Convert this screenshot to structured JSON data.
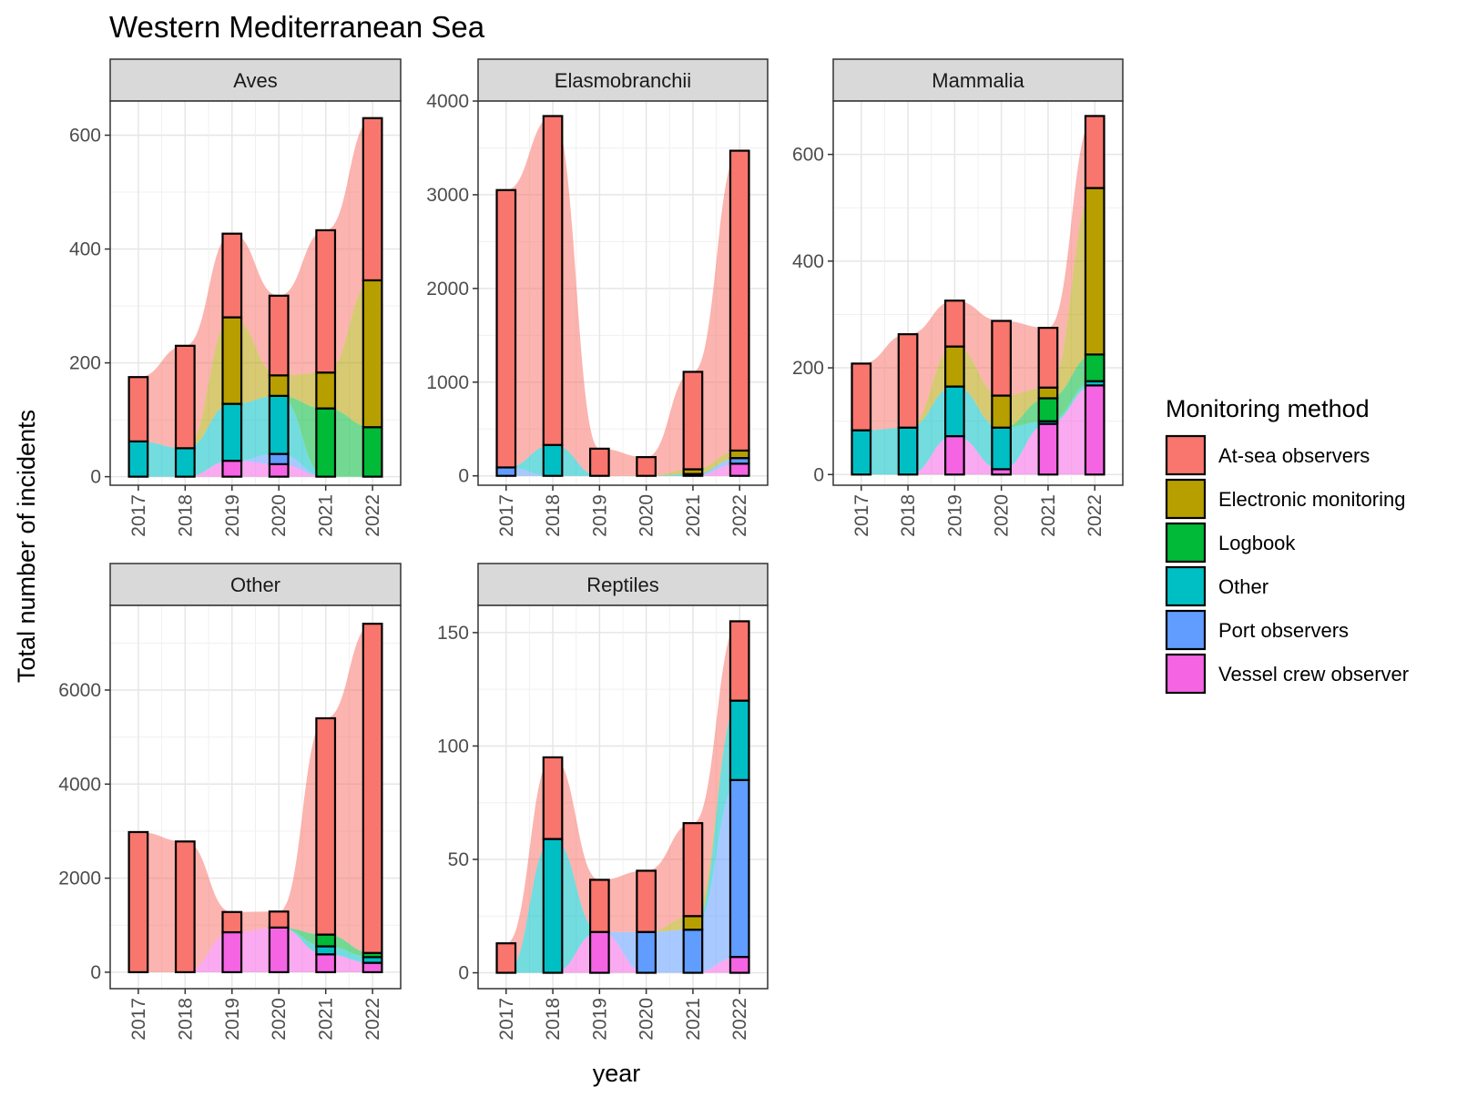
{
  "chart_data": {
    "type": "bar",
    "title": "Western Mediterranean Sea",
    "xlabel": "year",
    "ylabel": "Total number of incidents",
    "legend": {
      "title": "Monitoring method",
      "placement": "right",
      "entries": [
        "At-sea observers",
        "Electronic monitoring",
        "Logbook",
        "Other",
        "Port observers",
        "Vessel crew observer"
      ]
    },
    "colors": {
      "At-sea observers": "#F8766D",
      "Electronic monitoring": "#B79F00",
      "Logbook": "#00BA38",
      "Other": "#00BFC4",
      "Port observers": "#619CFF",
      "Vessel crew observer": "#F564E3"
    },
    "stack_order": [
      "Vessel crew observer",
      "Port observers",
      "Other",
      "Logbook",
      "Electronic monitoring",
      "At-sea observers"
    ],
    "categories": [
      "2017",
      "2018",
      "2019",
      "2020",
      "2021",
      "2022"
    ],
    "grid": true,
    "panels": [
      {
        "name": "Aves",
        "ylim": [
          -15,
          660
        ],
        "yticks": [
          0,
          200,
          400,
          600
        ],
        "series": [
          {
            "name": "Vessel crew observer",
            "values": [
              0,
              0,
              28,
              22,
              0,
              0
            ]
          },
          {
            "name": "Port observers",
            "values": [
              0,
              0,
              0,
              18,
              0,
              0
            ]
          },
          {
            "name": "Other",
            "values": [
              62,
              50,
              100,
              102,
              0,
              0
            ]
          },
          {
            "name": "Logbook",
            "values": [
              0,
              0,
              0,
              0,
              120,
              87
            ]
          },
          {
            "name": "Electronic monitoring",
            "values": [
              0,
              0,
              152,
              36,
              63,
              258
            ]
          },
          {
            "name": "At-sea observers",
            "values": [
              113,
              180,
              147,
              140,
              250,
              285
            ]
          }
        ]
      },
      {
        "name": "Elasmobranchii",
        "ylim": [
          -100,
          4000
        ],
        "yticks": [
          0,
          1000,
          2000,
          3000,
          4000
        ],
        "series": [
          {
            "name": "Vessel crew observer",
            "values": [
              0,
              0,
              0,
              0,
              0,
              130
            ]
          },
          {
            "name": "Port observers",
            "values": [
              90,
              0,
              0,
              0,
              0,
              60
            ]
          },
          {
            "name": "Other",
            "values": [
              0,
              330,
              0,
              0,
              20,
              0
            ]
          },
          {
            "name": "Logbook",
            "values": [
              0,
              0,
              0,
              0,
              0,
              0
            ]
          },
          {
            "name": "Electronic monitoring",
            "values": [
              0,
              0,
              0,
              0,
              50,
              80
            ]
          },
          {
            "name": "At-sea observers",
            "values": [
              2960,
              3510,
              290,
              200,
              1040,
              3200
            ]
          }
        ]
      },
      {
        "name": "Mammalia",
        "ylim": [
          -20,
          700
        ],
        "yticks": [
          0,
          200,
          400,
          600
        ],
        "series": [
          {
            "name": "Vessel crew observer",
            "values": [
              0,
              0,
              72,
              10,
              95,
              167
            ]
          },
          {
            "name": "Port observers",
            "values": [
              0,
              0,
              0,
              0,
              0,
              0
            ]
          },
          {
            "name": "Other",
            "values": [
              83,
              88,
              93,
              78,
              5,
              8
            ]
          },
          {
            "name": "Logbook",
            "values": [
              0,
              0,
              0,
              0,
              43,
              50
            ]
          },
          {
            "name": "Electronic monitoring",
            "values": [
              0,
              0,
              75,
              60,
              20,
              312
            ]
          },
          {
            "name": "At-sea observers",
            "values": [
              125,
              175,
              86,
              140,
              112,
              135
            ]
          }
        ]
      },
      {
        "name": "Other",
        "ylim": [
          -350,
          7800
        ],
        "yticks": [
          0,
          2000,
          4000,
          6000
        ],
        "series": [
          {
            "name": "Vessel crew observer",
            "values": [
              0,
              0,
              850,
              950,
              380,
              200
            ]
          },
          {
            "name": "Port observers",
            "values": [
              0,
              0,
              0,
              0,
              0,
              0
            ]
          },
          {
            "name": "Other",
            "values": [
              0,
              0,
              0,
              0,
              170,
              120
            ]
          },
          {
            "name": "Logbook",
            "values": [
              0,
              0,
              0,
              0,
              250,
              90
            ]
          },
          {
            "name": "Electronic monitoring",
            "values": [
              0,
              0,
              0,
              0,
              0,
              0
            ]
          },
          {
            "name": "At-sea observers",
            "values": [
              2980,
              2780,
              430,
              340,
              4600,
              7000
            ]
          }
        ]
      },
      {
        "name": "Reptiles",
        "ylim": [
          -7,
          162
        ],
        "yticks": [
          0,
          50,
          100,
          150
        ],
        "series": [
          {
            "name": "Vessel crew observer",
            "values": [
              0,
              0,
              18,
              0,
              0,
              7
            ]
          },
          {
            "name": "Port observers",
            "values": [
              0,
              0,
              0,
              18,
              19,
              78
            ]
          },
          {
            "name": "Other",
            "values": [
              0,
              59,
              0,
              0,
              0,
              35
            ]
          },
          {
            "name": "Logbook",
            "values": [
              0,
              0,
              0,
              0,
              0,
              0
            ]
          },
          {
            "name": "Electronic monitoring",
            "values": [
              0,
              0,
              0,
              0,
              6,
              0
            ]
          },
          {
            "name": "At-sea observers",
            "values": [
              13,
              36,
              23,
              27,
              41,
              35
            ]
          }
        ]
      }
    ]
  }
}
